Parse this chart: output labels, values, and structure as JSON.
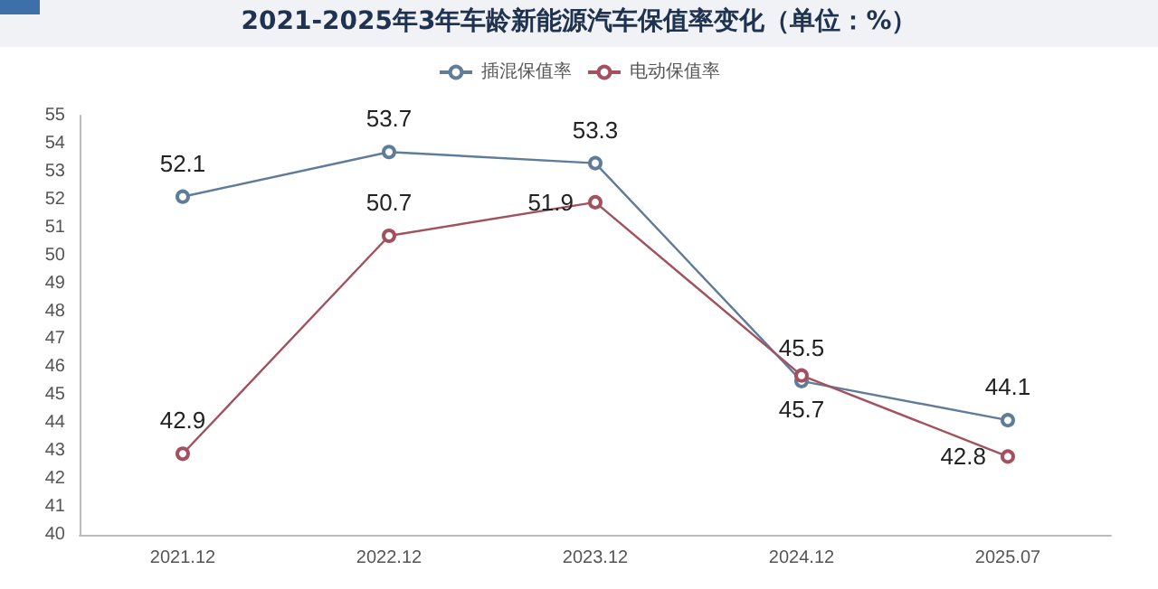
{
  "chart_data": {
    "type": "line",
    "title": "2021-2025年3年车龄新能源汽车保值率变化（单位：%）",
    "categories": [
      "2021.12",
      "2022.12",
      "2023.12",
      "2024.12",
      "2025.07"
    ],
    "series": [
      {
        "name": "插混保值率",
        "color": "#5f7d99",
        "values": [
          52.1,
          53.7,
          53.3,
          45.5,
          44.1
        ]
      },
      {
        "name": "电动保值率",
        "color": "#a3505f",
        "values": [
          42.9,
          50.7,
          51.9,
          45.7,
          42.8
        ]
      }
    ],
    "ylim": [
      40,
      55
    ],
    "yticks": [
      40,
      41,
      42,
      43,
      44,
      45,
      46,
      47,
      48,
      49,
      50,
      51,
      52,
      53,
      54,
      55
    ],
    "grid": false,
    "legend": "top",
    "marker": "circle",
    "line_style": "solid",
    "data_labels": true
  }
}
